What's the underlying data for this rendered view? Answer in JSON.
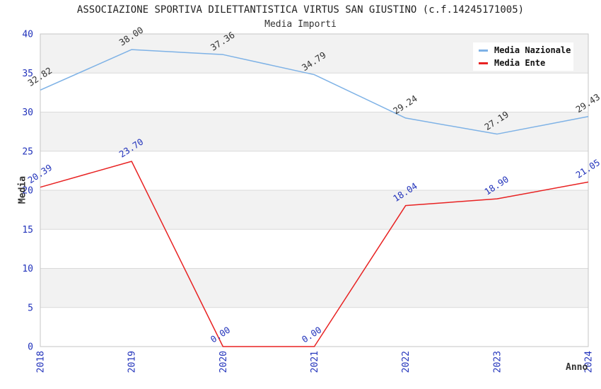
{
  "chart_data": {
    "type": "line",
    "title": "ASSOCIAZIONE SPORTIVA DILETTANTISTICA VIRTUS SAN GIUSTINO (c.f.14245171005)",
    "subtitle": "Media Importi",
    "xlabel": "Anno",
    "ylabel": "Media",
    "categories": [
      "2018",
      "2019",
      "2020",
      "2021",
      "2022",
      "2023",
      "2024"
    ],
    "series": [
      {
        "name": "Media Nazionale",
        "color": "#7EB2E6",
        "label_color": "#333333",
        "values": [
          32.82,
          38.0,
          37.36,
          34.79,
          29.24,
          27.19,
          29.43
        ]
      },
      {
        "name": "Media Ente",
        "color": "#E82222",
        "label_color": "#2233BB",
        "values": [
          20.39,
          23.7,
          0.0,
          0.0,
          18.04,
          18.9,
          21.05
        ]
      }
    ],
    "ylim": [
      0,
      40
    ],
    "yticks": [
      0,
      5,
      10,
      15,
      20,
      25,
      30,
      35,
      40
    ],
    "value_format": "2-decimals",
    "legend_position": "top-right",
    "grid": "horizontal-bands",
    "colors": {
      "tick_label": "#2233BB",
      "band": "#F2F2F2",
      "gridline": "#DADADA",
      "plot_border": "#C6C6C6",
      "background": "#FFFFFF"
    }
  }
}
